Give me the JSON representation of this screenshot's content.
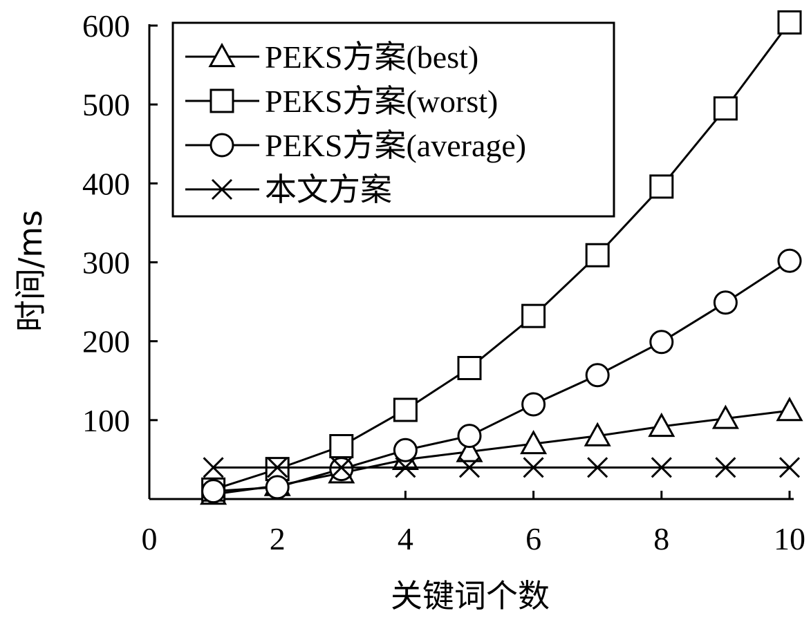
{
  "chart_data": {
    "type": "line",
    "xlabel": "关键词个数",
    "ylabel": "时间/ms",
    "xlim": [
      0,
      10
    ],
    "ylim": [
      0,
      600
    ],
    "x_ticks": [
      "0",
      "2",
      "4",
      "6",
      "8",
      "10"
    ],
    "y_ticks": [
      "100",
      "200",
      "300",
      "400",
      "500",
      "600"
    ],
    "grid": false,
    "legend_position": "top-left",
    "x": [
      1,
      2,
      3,
      4,
      5,
      6,
      7,
      8,
      9,
      10
    ],
    "series": [
      {
        "name": "PEKS方案(best)",
        "marker": "triangle",
        "values": [
          6,
          17,
          33,
          50,
          60,
          70,
          80,
          92,
          102,
          112
        ]
      },
      {
        "name": "PEKS方案(worst)",
        "marker": "square",
        "values": [
          12,
          38,
          67,
          113,
          166,
          232,
          309,
          396,
          495,
          604
        ]
      },
      {
        "name": "PEKS方案(average)",
        "marker": "circle",
        "values": [
          10,
          15,
          38,
          62,
          80,
          120,
          157,
          199,
          249,
          302
        ]
      },
      {
        "name": "本文方案",
        "marker": "x",
        "values": [
          40,
          40,
          40,
          40,
          40,
          40,
          40,
          40,
          40,
          40
        ]
      }
    ]
  }
}
